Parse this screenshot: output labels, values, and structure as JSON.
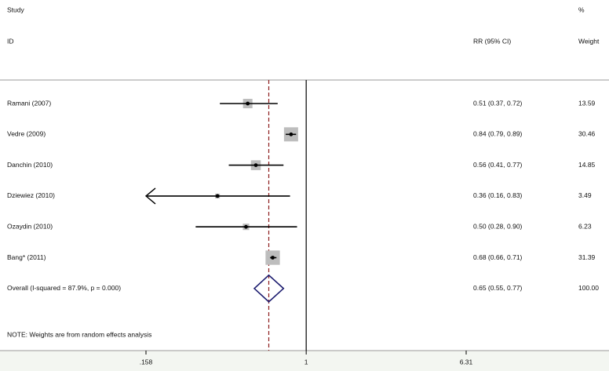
{
  "chart_data": {
    "type": "forest",
    "study_header": "Study",
    "id_header": "ID",
    "ci_header": "RR (95% CI)",
    "weight_header_top": "%",
    "weight_header": "Weight",
    "note": "NOTE: Weights are from random effects analysis",
    "categories": [
      "Ramani (2007)",
      "Vedre (2009)",
      "Danchin (2010)",
      "Dziewiez (2010)",
      "Ozaydin (2010)",
      "Bang* (2011)"
    ],
    "values": [
      0.51,
      0.84,
      0.56,
      0.36,
      0.5,
      0.68
    ],
    "lower": [
      0.37,
      0.79,
      0.41,
      0.16,
      0.28,
      0.66
    ],
    "upper": [
      0.72,
      0.89,
      0.77,
      0.83,
      0.9,
      0.71
    ],
    "value_labels": [
      "0.51 (0.37, 0.72)",
      "0.84 (0.79, 0.89)",
      "0.56 (0.41, 0.77)",
      "0.36 (0.16, 0.83)",
      "0.50 (0.28, 0.90)",
      "0.68 (0.66, 0.71)"
    ],
    "weights": [
      13.59,
      30.46,
      14.85,
      3.49,
      6.23,
      31.39
    ],
    "overall": {
      "label": "Overall  (I-squared = 87.9%, p = 0.000)",
      "value": 0.65,
      "lower": 0.55,
      "upper": 0.77,
      "value_label": "0.65 (0.55, 0.77)",
      "weight": 100,
      "weight_label": "100.00"
    },
    "log_x": true,
    "xlim": [
      0.158,
      6.31
    ],
    "xticks": [
      {
        "value": 0.158,
        "label": ".158"
      },
      1,
      {
        "value": 6.31,
        "label": "6.31"
      }
    ],
    "null_value": 1,
    "square_color": "#bdbdbd",
    "diamond_color": "#1a1a6e",
    "overall_line_color": "#8b1a1a"
  }
}
